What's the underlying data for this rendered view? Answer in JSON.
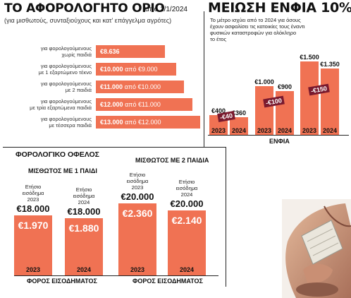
{
  "threshold": {
    "title": "ΤΟ ΑΦΟΡΟΛΟΓΗΤΟ ΟΡΙΟ",
    "date": "από 1/1/2024",
    "subtitle": "(για μισθωτούς, συνταξιούχους και κατ' επάγγελμα αγρότες)",
    "rows": [
      {
        "label_line1": "για φορολογούμενους",
        "label_line2": "χωρίς παιδιά",
        "value": "€8.636",
        "from": ""
      },
      {
        "label_line1": "για φορολογούμενους",
        "label_line2": "με 1 εξαρτώμενο τέκνο",
        "value": "€10.000",
        "from": "από €9.000"
      },
      {
        "label_line1": "για φορολογούμενους",
        "label_line2": "με 2 παιδιά",
        "value": "€11.000",
        "from": "από €10.000"
      },
      {
        "label_line1": "για φορολογούμενους",
        "label_line2": "με τρία εξαρτώμενα παιδιά",
        "value": "€12.000",
        "from": "από €11.000"
      },
      {
        "label_line1": "για φορολογούμενους",
        "label_line2": "με τέσσερα παιδιά",
        "value": "€13.000",
        "from": "από €12.000"
      }
    ]
  },
  "enfia": {
    "title": "ΜΕΙΩΣΗ ΕΝΦΙΑ 10%",
    "subtitle_line1": "Το μέτρο ισχύει από το 2024 για όσους",
    "subtitle_line2": "έχουν ασφαλίσει τις κατοικίες τους έναντι",
    "subtitle_line3": "φυσικών καταστροφών για ολόκληρο",
    "subtitle_line4": "το έτος",
    "xlabel": "ΕΝΦΙΑ",
    "groups": [
      {
        "v2023": "€400",
        "v2024": "€360",
        "badge": "-€40",
        "y1": "2023",
        "y2": "2024"
      },
      {
        "v2023": "€1.000",
        "v2024": "€900",
        "badge": "-€100",
        "y1": "2023",
        "y2": "2024"
      },
      {
        "v2023": "€1.500",
        "v2024": "€1.350",
        "badge": "-€150",
        "y1": "2023",
        "y2": "2024"
      }
    ]
  },
  "benefit": {
    "title": "ΦΟΡΟΛΟΓΙΚΟ ΟΦΕΛΟΣ",
    "left": {
      "heading": "ΜΙΣΘΩΤΟΣ ΜΕ 1 ΠΑΙΔΙ",
      "income_label_line1": "Ετήσιο",
      "income_label_line2": "εισόδημα",
      "cols": [
        {
          "year_label": "2023",
          "income": "€18.000",
          "tax": "€1.970",
          "year": "2023"
        },
        {
          "year_label": "2024",
          "income": "€18.000",
          "tax": "€1.880",
          "year": "2024"
        }
      ],
      "xlabel": "ΦΟΡΟΣ ΕΙΣΟΔΗΜΑΤΟΣ"
    },
    "right": {
      "heading": "ΜΙΣΘΩΤΟΣ ΜΕ 2 ΠΑΙΔΙΑ",
      "income_label_line1": "Ετήσιο",
      "income_label_line2": "εισόδημα",
      "cols": [
        {
          "year_label": "2023",
          "income": "€20.000",
          "tax": "€2.360",
          "year": "2023"
        },
        {
          "year_label": "2024",
          "income": "€20.000",
          "tax": "€2.140",
          "year": "2024"
        }
      ],
      "xlabel": "ΦΟΡΟΣ ΕΙΣΟΔΗΜΑΤΟΣ"
    }
  },
  "chart_data": [
    {
      "type": "bar",
      "title": "ΤΟ ΑΦΟΡΟΛΟΓΗΤΟ ΟΡΙΟ",
      "categories": [
        "χωρίς παιδιά",
        "με 1 εξαρτώμενο τέκνο",
        "με 2 παιδιά",
        "με τρία εξαρτώμενα παιδιά",
        "με τέσσερα παιδιά"
      ],
      "values": [
        8636,
        10000,
        11000,
        12000,
        13000
      ]
    },
    {
      "type": "bar",
      "title": "ΜΕΙΩΣΗ ΕΝΦΙΑ 10%",
      "categories": [
        "2023",
        "2024",
        "2023",
        "2024",
        "2023",
        "2024"
      ],
      "values": [
        400,
        360,
        1000,
        900,
        1500,
        1350
      ],
      "xlabel": "ΕΝΦΙΑ"
    },
    {
      "type": "bar",
      "title": "ΦΟΡΟΛΟΓΙΚΟ ΟΦΕΛΟΣ",
      "categories": [
        "2023",
        "2024",
        "2023",
        "2024"
      ],
      "values": [
        1970,
        1880,
        2360,
        2140
      ],
      "xlabel": "ΦΟΡΟΣ ΕΙΣΟΔΗΜΑΤΟΣ"
    }
  ]
}
